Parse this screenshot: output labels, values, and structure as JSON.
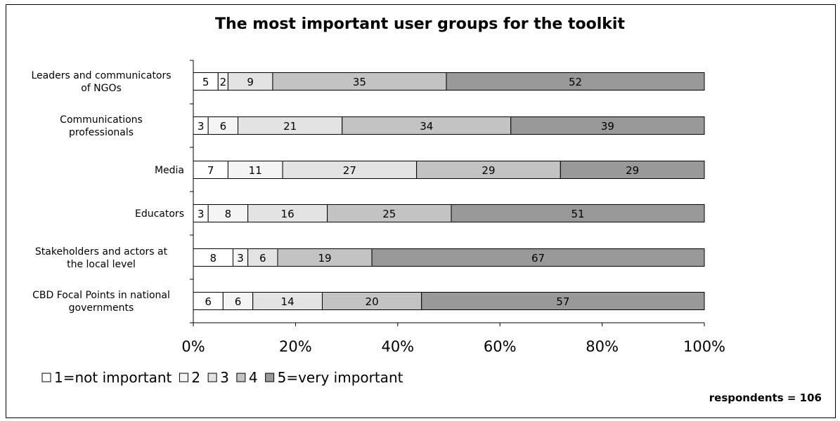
{
  "chart_data": {
    "type": "bar",
    "orientation": "horizontal",
    "stacked": "percent",
    "title": "The most important user groups for the toolkit",
    "categories": [
      "Leaders and communicators of NGOs",
      "Communications professionals",
      "Media",
      "Educators",
      "Stakeholders and actors at the local level",
      "CBD Focal Points in national governments"
    ],
    "series": [
      {
        "name": "1=not important",
        "color": "#ffffff",
        "values": [
          5,
          3,
          7,
          3,
          8,
          6
        ]
      },
      {
        "name": "2",
        "color": "#f4f4f4",
        "values": [
          2,
          6,
          11,
          8,
          3,
          6
        ]
      },
      {
        "name": "3",
        "color": "#e3e3e3",
        "values": [
          9,
          21,
          27,
          16,
          6,
          14
        ]
      },
      {
        "name": "4",
        "color": "#c3c3c3",
        "values": [
          35,
          34,
          29,
          25,
          19,
          20
        ]
      },
      {
        "name": "5=very important",
        "color": "#999999",
        "values": [
          52,
          39,
          29,
          51,
          67,
          57
        ]
      }
    ],
    "x_ticks": [
      "0%",
      "20%",
      "40%",
      "60%",
      "80%",
      "100%"
    ],
    "xlim": [
      0,
      100
    ],
    "legend_position": "bottom-left",
    "grid": false,
    "note": "respondents = 106"
  }
}
